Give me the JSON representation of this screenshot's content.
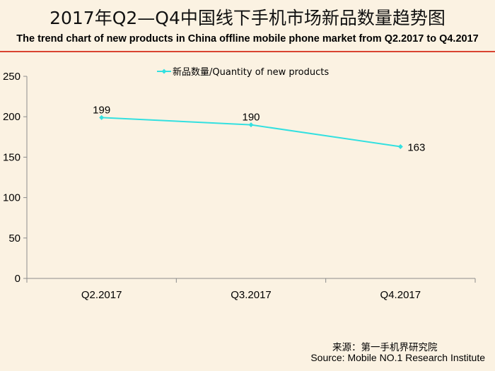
{
  "header": {
    "title": "2017年Q2—Q4中国线下手机市场新品数量趋势图",
    "subtitle": "The trend chart of new products in China offline mobile phone market from Q2.2017 to Q4.2017"
  },
  "footer": {
    "source_cn": "来源：第一手机界研究院",
    "source_en": "Source: Mobile NO.1 Research Institute"
  },
  "colors": {
    "background": "#fbf2e2",
    "rule": "#d94330",
    "series": "#33e0e0",
    "axis": "#8c8c8c"
  },
  "chart_data": {
    "type": "line",
    "categories": [
      "Q2.2017",
      "Q3.2017",
      "Q4.2017"
    ],
    "series": [
      {
        "name": "新品数量/Quantity of new products",
        "values": [
          199,
          190,
          163
        ]
      }
    ],
    "ylim": [
      0,
      250
    ],
    "yticks": [
      0,
      50,
      100,
      150,
      200,
      250
    ],
    "grid": false,
    "legend": "top-left",
    "data_labels": [
      "199",
      "190",
      "163"
    ]
  }
}
